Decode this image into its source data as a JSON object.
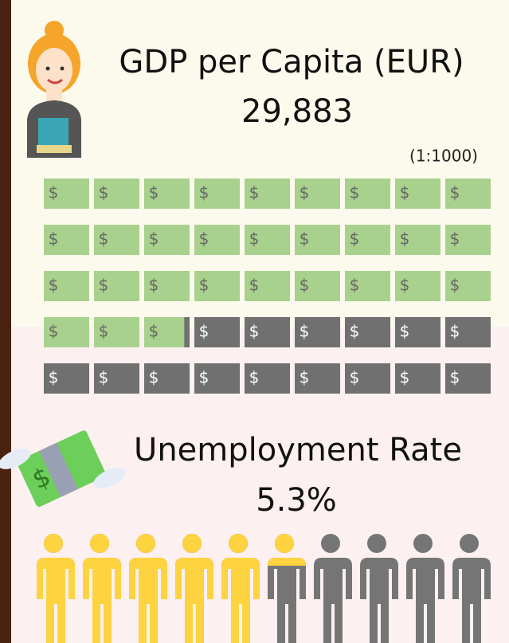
{
  "gdp": {
    "title": "GDP per Capita (EUR)",
    "value": 29883,
    "value_label": "29,883",
    "scale_label": "(1:1000)",
    "per_icon": 1000,
    "icon_symbol": "$"
  },
  "unemployment": {
    "title": "Unemployment Rate",
    "value": 5.3,
    "value_label": "5.3%"
  }
}
